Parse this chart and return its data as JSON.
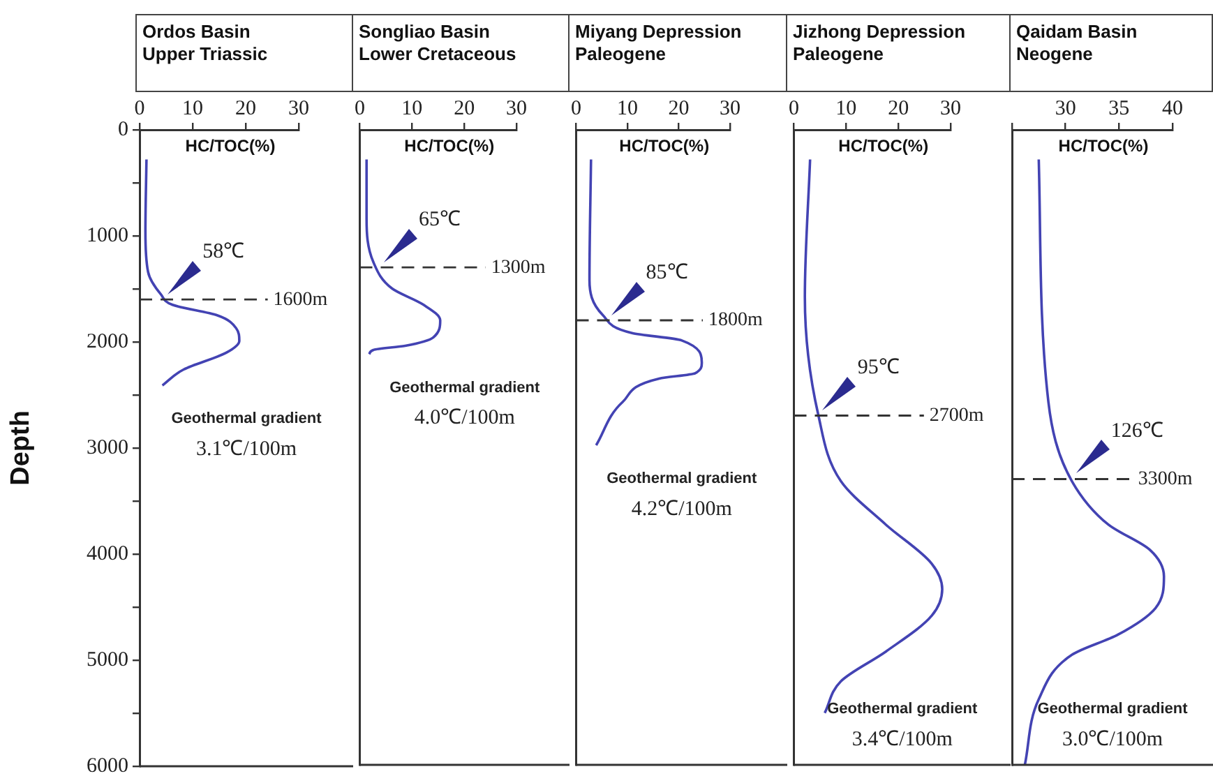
{
  "chart_data": [
    {
      "type": "line",
      "title": "Ordos Basin",
      "subtitle": "Upper Triassic",
      "xlabel": "HC/TOC(%)",
      "ylabel": "Depth",
      "xlim": [
        0,
        30
      ],
      "xticks": [
        0,
        10,
        20,
        30
      ],
      "ylim": [
        6000,
        0
      ],
      "yticks": [
        0,
        {
          "value": 500,
          "label": null
        },
        1000,
        {
          "value": 1500,
          "label": null
        },
        2000,
        {
          "value": 2500,
          "label": null
        },
        3000,
        {
          "value": 3500,
          "label": null
        },
        4000,
        {
          "value": 4500,
          "label": null
        },
        5000,
        {
          "value": 5500,
          "label": null
        },
        6000
      ],
      "marker": "none",
      "line_style": "solid",
      "series": [
        {
          "color": "#4343b3",
          "x": [
            1.3,
            1.1,
            1.6,
            4.0,
            6.2,
            14.7,
            18.2,
            18.8,
            16.4,
            8.3,
            4.3
          ],
          "values": [
            280,
            960,
            1340,
            1550,
            1650,
            1750,
            1870,
            1990,
            2100,
            2260,
            2410
          ]
        }
      ],
      "ref_lines": [
        {
          "axis": "y",
          "value": 1600,
          "label": "1600m",
          "line_style": "dashed",
          "color": "#333333"
        }
      ],
      "annotations": [
        {
          "text": "58℃",
          "x": 4.5,
          "y": 1600
        },
        "Geothermal gradient",
        "3.1℃/100m"
      ]
    },
    {
      "type": "line",
      "title": "Songliao Basin",
      "subtitle": "Lower Cretaceous",
      "xlabel": "HC/TOC(%)",
      "xlim": [
        0,
        30
      ],
      "xticks": [
        0,
        10,
        20,
        30
      ],
      "ylim": [
        6000,
        0
      ],
      "tick_labels": "x",
      "marker": "none",
      "line_style": "solid",
      "series": [
        {
          "color": "#4343b3",
          "x": [
            1.3,
            1.3,
            2.6,
            6.2,
            12.1,
            15.4,
            14.1,
            8.7,
            2.6,
            1.8
          ],
          "values": [
            280,
            840,
            1250,
            1500,
            1650,
            1800,
            1960,
            2040,
            2080,
            2120
          ]
        }
      ],
      "ref_lines": [
        {
          "axis": "y",
          "value": 1300,
          "label": "1300m",
          "line_style": "dashed",
          "color": "#333333"
        }
      ],
      "annotations": [
        {
          "text": "65℃",
          "x": 3.8,
          "y": 1300
        },
        "Geothermal gradient",
        "4.0℃/100m"
      ]
    },
    {
      "type": "line",
      "title": "Miyang Depression",
      "subtitle": "Paleogene",
      "xlabel": "HC/TOC(%)",
      "xlim": [
        0,
        30
      ],
      "xticks": [
        0,
        10,
        20,
        30
      ],
      "ylim": [
        6000,
        0
      ],
      "tick_labels": "x",
      "marker": "none",
      "line_style": "solid",
      "series": [
        {
          "color": "#4343b3",
          "x": [
            2.9,
            2.6,
            5.2,
            10.9,
            20.6,
            24.5,
            23.2,
            16.2,
            9.1,
            3.9
          ],
          "values": [
            280,
            1420,
            1750,
            1920,
            1990,
            2200,
            2300,
            2350,
            2570,
            2980
          ]
        }
      ],
      "ref_lines": [
        {
          "axis": "y",
          "value": 1800,
          "label": "1800m",
          "line_style": "dashed",
          "color": "#333333"
        }
      ],
      "annotations": [
        {
          "text": "85℃",
          "x": 6,
          "y": 1800
        },
        "Geothermal gradient",
        "4.2℃/100m"
      ]
    },
    {
      "type": "line",
      "title": "Jizhong Depression",
      "subtitle": "Paleogene",
      "xlabel": "HC/TOC(%)",
      "xlim": [
        0,
        30
      ],
      "xticks": [
        0,
        10,
        20,
        30
      ],
      "ylim": [
        6000,
        0
      ],
      "tick_labels": "x",
      "marker": "none",
      "line_style": "solid",
      "series": [
        {
          "color": "#4343b3",
          "x": [
            3.1,
            2.1,
            4.7,
            9.0,
            17.6,
            26.4,
            28.4,
            26.4,
            17.6,
            9.0,
            5.9
          ],
          "values": [
            280,
            1580,
            2700,
            3320,
            3730,
            4100,
            4340,
            4590,
            4930,
            5210,
            5510
          ]
        }
      ],
      "ref_lines": [
        {
          "axis": "y",
          "value": 2700,
          "label": "2700m",
          "line_style": "dashed",
          "color": "#333333"
        }
      ],
      "annotations": [
        {
          "text": "95℃",
          "x": 4.7,
          "y": 2700
        },
        "Geothermal gradient",
        "3.4℃/100m"
      ]
    },
    {
      "type": "line",
      "title": "Qaidam Basin",
      "subtitle": "Neogene",
      "xlabel": "HC/TOC(%)",
      "xlim": [
        25,
        40
      ],
      "xticks": [
        {
          "value": 25,
          "label": null
        },
        30,
        35,
        40
      ],
      "ylim": [
        6000,
        0
      ],
      "tick_labels": "x",
      "marker": "none",
      "line_style": "solid",
      "series": [
        {
          "color": "#4343b3",
          "x": [
            27.5,
            28.4,
            30.6,
            34.0,
            37.9,
            39.2,
            38.4,
            34.9,
            30.6,
            27.5,
            26.2
          ],
          "values": [
            280,
            2570,
            3320,
            3730,
            3970,
            4220,
            4520,
            4770,
            4960,
            5380,
            6000
          ]
        }
      ],
      "ref_lines": [
        {
          "axis": "y",
          "value": 3300,
          "label": "3300m",
          "line_style": "dashed",
          "color": "#333333"
        }
      ],
      "annotations": [
        {
          "text": "126℃",
          "x": 30.6,
          "y": 3300
        },
        "Geothermal gradient",
        "3.0℃/100m"
      ]
    }
  ]
}
